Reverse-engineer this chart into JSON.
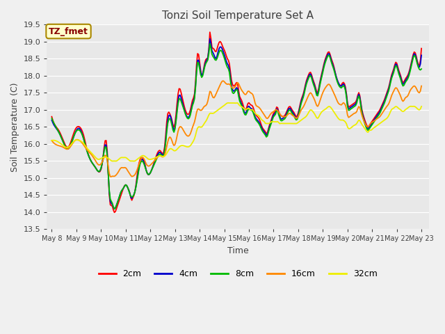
{
  "title": "Tonzi Soil Temperature Set A",
  "xlabel": "Time",
  "ylabel": "Soil Temperature (C)",
  "ylim": [
    13.5,
    19.5
  ],
  "fig_bg_color": "#f0f0f0",
  "plot_bg_color": "#e8e8e8",
  "annotation_text": "TZ_fmet",
  "annotation_bg": "#ffffcc",
  "annotation_border": "#aa8800",
  "legend_entries": [
    "2cm",
    "4cm",
    "8cm",
    "16cm",
    "32cm"
  ],
  "line_colors": [
    "#ff0000",
    "#0000cc",
    "#00bb00",
    "#ff8800",
    "#eeee00"
  ],
  "yticks": [
    13.5,
    14.0,
    14.5,
    15.0,
    15.5,
    16.0,
    16.5,
    17.0,
    17.5,
    18.0,
    18.5,
    19.0,
    19.5
  ],
  "x_tick_labels": [
    "May 8",
    "May 9",
    "May 10",
    "May 11",
    "May 12",
    "May 13",
    "May 14",
    "May 15",
    "May 16",
    "May 17",
    "May 18",
    "May 19",
    "May 20",
    "May 21",
    "May 22",
    "May 23"
  ],
  "n_points": 361
}
